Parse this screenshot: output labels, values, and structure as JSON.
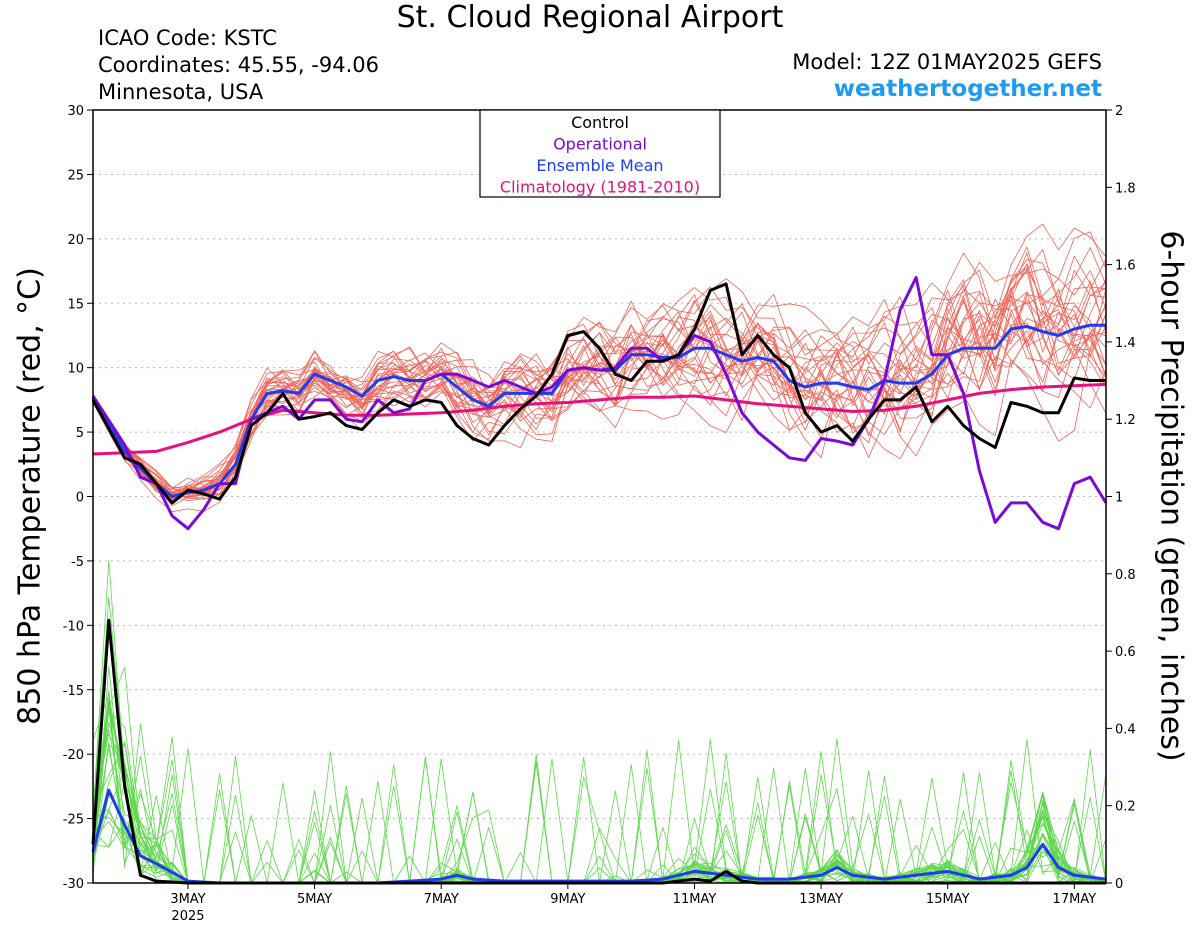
{
  "header": {
    "title": "St. Cloud Regional Airport",
    "icao": "ICAO Code: KSTC",
    "coords": "Coordinates: 45.55, -94.06",
    "region": "Minnesota, USA",
    "model": "Model: 12Z 01MAY2025 GEFS",
    "site": "weathertogether.net"
  },
  "colors": {
    "members_temp": "#ef4a3c",
    "members_precip": "#43d12e",
    "control": "#000000",
    "operational": "#7a0ad6",
    "ensemble_mean": "#1f3cf0",
    "climatology": "#e8107e",
    "site": "#1e9bf0"
  },
  "chart_data": {
    "type": "line",
    "ylabel_left": "850 hPa Temperature (red, °C)",
    "ylabel_right": "6-hour Precipitation (green, inches)",
    "ylim_left": [
      -30,
      30
    ],
    "ylim_right": [
      0,
      2
    ],
    "yticks_left": [
      "30",
      "25",
      "20",
      "15",
      "10",
      "5",
      "0",
      "-5",
      "-10",
      "-15",
      "-20",
      "-25",
      "-30"
    ],
    "yticks_right": [
      "2",
      "1.8",
      "1.6",
      "1.4",
      "1.2",
      "1",
      "0.8",
      "0.6",
      "0.4",
      "0.2",
      "0"
    ],
    "xticks": [
      {
        "day": 3,
        "label": "3MAY",
        "sub": "2025"
      },
      {
        "day": 5,
        "label": "5MAY"
      },
      {
        "day": 7,
        "label": "7MAY"
      },
      {
        "day": 9,
        "label": "9MAY"
      },
      {
        "day": 11,
        "label": "11MAY"
      },
      {
        "day": 13,
        "label": "13MAY"
      },
      {
        "day": 15,
        "label": "15MAY"
      },
      {
        "day": 17,
        "label": "17MAY"
      }
    ],
    "xlim_days": [
      1.5,
      17.5
    ],
    "legend": {
      "placement": "top-center",
      "entries": [
        "Control",
        "Operational",
        "Ensemble Mean",
        "Climatology (1981-2010)"
      ]
    },
    "series": [
      {
        "name": "Control",
        "role": "control_temp",
        "days": [
          1.5,
          2.0,
          2.25,
          2.5,
          2.75,
          3.0,
          3.25,
          3.5,
          3.75,
          4.0,
          4.25,
          4.5,
          4.75,
          5.0,
          5.25,
          5.5,
          5.75,
          6.0,
          6.25,
          6.5,
          6.75,
          7.0,
          7.25,
          7.5,
          7.75,
          8.0,
          8.25,
          8.5,
          8.75,
          9.0,
          9.25,
          9.5,
          9.75,
          10.0,
          10.25,
          10.5,
          10.75,
          11.0,
          11.25,
          11.5,
          11.75,
          12.0,
          12.25,
          12.5,
          12.75,
          13.0,
          13.25,
          13.5,
          13.75,
          14.0,
          14.25,
          14.5,
          14.75,
          15.0,
          15.25,
          15.5,
          15.75,
          16.0,
          16.25,
          16.5,
          16.75,
          17.0,
          17.25,
          17.5
        ],
        "values": [
          7.5,
          3.0,
          2.5,
          1.0,
          -0.5,
          0.5,
          0.2,
          -0.2,
          1.5,
          5.5,
          6.5,
          8.0,
          6.0,
          6.2,
          6.5,
          5.5,
          5.2,
          6.5,
          7.5,
          7.0,
          7.5,
          7.3,
          5.5,
          4.5,
          4.0,
          5.5,
          6.8,
          7.8,
          9.5,
          12.5,
          12.8,
          11.5,
          9.5,
          9.0,
          10.5,
          10.5,
          11.0,
          13.0,
          16.0,
          16.5,
          11.0,
          12.5,
          11.0,
          10.0,
          6.5,
          5.0,
          5.5,
          4.3,
          6.0,
          7.5,
          7.5,
          8.5,
          5.8,
          7.0,
          5.5,
          4.5,
          3.8,
          7.3,
          7.0,
          6.5,
          6.5,
          9.2,
          9.0,
          9.0
        ]
      },
      {
        "name": "Operational",
        "role": "operational_temp",
        "days": [
          1.5,
          2.0,
          2.25,
          2.5,
          2.75,
          3.0,
          3.25,
          3.5,
          3.75,
          4.0,
          4.25,
          4.5,
          4.75,
          5.0,
          5.25,
          5.5,
          5.75,
          6.0,
          6.25,
          6.5,
          6.75,
          7.0,
          7.25,
          7.5,
          7.75,
          8.0,
          8.25,
          8.5,
          8.75,
          9.0,
          9.25,
          9.5,
          9.75,
          10.0,
          10.25,
          10.5,
          10.75,
          11.0,
          11.25,
          11.5,
          11.75,
          12.0,
          12.25,
          12.5,
          12.75,
          13.0,
          13.25,
          13.5,
          13.75,
          14.0,
          14.25,
          14.5,
          14.75,
          15.0,
          15.25,
          15.5,
          15.75,
          16.0,
          16.25,
          16.5,
          16.75,
          17.0,
          17.25,
          17.5
        ],
        "values": [
          7.8,
          4.0,
          1.5,
          1.0,
          -1.5,
          -2.5,
          -1.0,
          1.0,
          1.0,
          6.0,
          6.5,
          7.0,
          6.0,
          7.5,
          7.5,
          6.0,
          5.8,
          7.5,
          6.5,
          6.8,
          9.0,
          9.5,
          9.5,
          9.0,
          8.5,
          9.0,
          8.5,
          8.0,
          8.5,
          9.8,
          10.0,
          9.8,
          10.0,
          11.5,
          11.5,
          10.5,
          11.0,
          12.5,
          12.0,
          9.5,
          6.5,
          5.0,
          4.0,
          3.0,
          2.8,
          4.5,
          4.3,
          4.0,
          6.0,
          9.0,
          14.5,
          17.0,
          11.0,
          11.0,
          8.0,
          2.0,
          -2.0,
          -0.5,
          -0.5,
          -2.0,
          -2.5,
          1.0,
          1.5,
          -0.5
        ]
      },
      {
        "name": "Ensemble Mean",
        "role": "mean_temp",
        "days": [
          1.5,
          2.0,
          2.25,
          2.5,
          2.75,
          3.0,
          3.25,
          3.5,
          3.75,
          4.0,
          4.25,
          4.5,
          4.75,
          5.0,
          5.25,
          5.5,
          5.75,
          6.0,
          6.25,
          6.5,
          6.75,
          7.0,
          7.25,
          7.5,
          7.75,
          8.0,
          8.25,
          8.5,
          8.75,
          9.0,
          9.25,
          9.5,
          9.75,
          10.0,
          10.25,
          10.5,
          10.75,
          11.0,
          11.25,
          11.5,
          11.75,
          12.0,
          12.25,
          12.5,
          12.75,
          13.0,
          13.25,
          13.5,
          13.75,
          14.0,
          14.25,
          14.5,
          14.75,
          15.0,
          15.25,
          15.5,
          15.75,
          16.0,
          16.25,
          16.5,
          16.75,
          17.0,
          17.25,
          17.5
        ],
        "values": [
          7.6,
          3.5,
          2.2,
          1.0,
          0.0,
          0.3,
          0.5,
          1.0,
          2.5,
          6.0,
          8.0,
          8.2,
          8.0,
          9.5,
          9.0,
          8.5,
          7.8,
          9.0,
          9.3,
          9.0,
          9.0,
          9.5,
          8.5,
          7.5,
          7.0,
          8.0,
          8.0,
          8.0,
          8.0,
          9.8,
          10.0,
          9.8,
          9.8,
          11.0,
          11.0,
          10.8,
          10.8,
          11.5,
          11.5,
          11.0,
          10.5,
          10.8,
          10.5,
          9.0,
          8.5,
          8.8,
          8.8,
          8.5,
          8.3,
          9.0,
          8.8,
          8.8,
          9.5,
          11.0,
          11.5,
          11.5,
          11.5,
          13.0,
          13.2,
          12.8,
          12.5,
          13.0,
          13.3,
          13.3
        ]
      },
      {
        "name": "Climatology (1981-2010)",
        "role": "climatology_temp",
        "days": [
          1.5,
          2.0,
          2.5,
          3.0,
          3.5,
          4.0,
          4.5,
          5.0,
          5.5,
          6.0,
          6.5,
          7.0,
          7.5,
          8.0,
          8.5,
          9.0,
          9.5,
          10.0,
          10.5,
          11.0,
          11.5,
          12.0,
          12.5,
          13.0,
          13.5,
          14.0,
          14.5,
          15.0,
          15.5,
          16.0,
          16.5,
          17.0,
          17.5
        ],
        "values": [
          3.3,
          3.4,
          3.5,
          4.2,
          5.0,
          6.0,
          6.7,
          6.5,
          6.3,
          6.3,
          6.4,
          6.5,
          6.7,
          7.0,
          7.2,
          7.3,
          7.5,
          7.7,
          7.7,
          7.8,
          7.5,
          7.2,
          7.0,
          6.8,
          6.6,
          6.7,
          7.0,
          7.5,
          8.0,
          8.3,
          8.5,
          8.6,
          8.7
        ]
      },
      {
        "name": "Control",
        "role": "control_precip",
        "days": [
          1.5,
          1.75,
          2.0,
          2.25,
          2.5,
          3.0,
          3.5,
          4.0,
          10.5,
          11.0,
          11.25,
          11.5,
          11.75,
          12.0,
          12.5,
          17.5
        ],
        "values": [
          0.1,
          0.68,
          0.25,
          0.02,
          0.005,
          0.0,
          0.0,
          0.0,
          0.0,
          0.01,
          0.005,
          0.03,
          0.005,
          0.0,
          0.0,
          0.0
        ]
      },
      {
        "name": "Ensemble Mean",
        "role": "mean_precip",
        "days": [
          1.5,
          1.75,
          2.0,
          2.25,
          2.5,
          3.0,
          3.5,
          4.0,
          5.0,
          6.0,
          6.5,
          7.0,
          7.25,
          7.5,
          8.0,
          9.0,
          10.0,
          10.5,
          11.0,
          11.5,
          12.0,
          12.5,
          13.0,
          13.25,
          13.5,
          14.0,
          14.5,
          15.0,
          15.5,
          16.0,
          16.25,
          16.5,
          16.75,
          17.0,
          17.5
        ],
        "values": [
          0.08,
          0.24,
          0.15,
          0.07,
          0.05,
          0.005,
          0.0,
          0.0,
          0.0,
          0.0,
          0.005,
          0.01,
          0.02,
          0.01,
          0.005,
          0.005,
          0.005,
          0.01,
          0.03,
          0.02,
          0.01,
          0.01,
          0.02,
          0.04,
          0.02,
          0.01,
          0.02,
          0.03,
          0.01,
          0.02,
          0.04,
          0.1,
          0.04,
          0.02,
          0.01
        ]
      }
    ]
  }
}
